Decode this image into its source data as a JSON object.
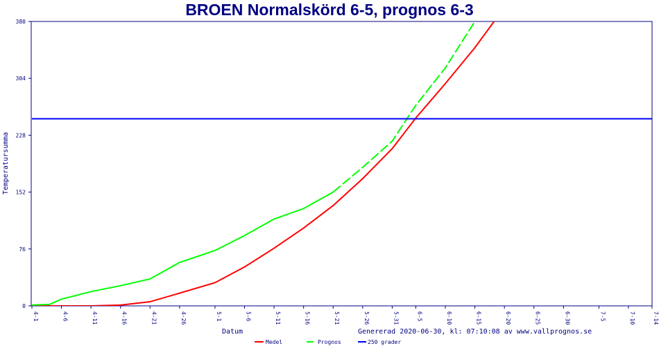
{
  "chart_data": {
    "type": "line",
    "title": "BROEN Normalskörd 6-5, prognos 6-3",
    "xlabel": "Datum",
    "ylabel": "Temperatursumma",
    "footer": "Genererad 2020-06-30, kl: 07:10:08 av www.vallprognos.se",
    "ylim": [
      0,
      380
    ],
    "yticks": [
      "0",
      "76",
      "152",
      "228",
      "304",
      "380"
    ],
    "xlim": [
      "4-1",
      "7-14"
    ],
    "xticks": [
      "4-1",
      "4-6",
      "4-11",
      "4-16",
      "4-21",
      "4-26",
      "5-1",
      "5-6",
      "5-11",
      "5-16",
      "5-21",
      "5-26",
      "5-31",
      "6-5",
      "6-10",
      "6-15",
      "6-20",
      "6-25",
      "6-30",
      "7-5",
      "7-10",
      "7-14"
    ],
    "grid": false,
    "legend_position": "bottom",
    "series": [
      {
        "name": "Medel",
        "color": "#ff0000",
        "points": [
          [
            "4-1",
            0
          ],
          [
            "4-11",
            0
          ],
          [
            "4-16",
            1
          ],
          [
            "4-21",
            5.5
          ],
          [
            "4-26",
            17
          ],
          [
            "5-1",
            31
          ],
          [
            "5-6",
            52
          ],
          [
            "5-11",
            77
          ],
          [
            "5-16",
            104
          ],
          [
            "5-21",
            134
          ],
          [
            "5-26",
            170
          ],
          [
            "5-31",
            210
          ],
          [
            "6-5",
            251
          ],
          [
            "6-10",
            297
          ],
          [
            "6-15",
            345
          ],
          [
            "6-19",
            388
          ],
          [
            "6-20",
            400
          ]
        ]
      },
      {
        "name": "Prognos",
        "color": "#00ff00",
        "points": [
          [
            "4-1",
            1
          ],
          [
            "4-4",
            2
          ],
          [
            "4-6",
            9
          ],
          [
            "4-11",
            19
          ],
          [
            "4-16",
            27
          ],
          [
            "4-21",
            36
          ],
          [
            "4-26",
            58
          ],
          [
            "5-1",
            74
          ],
          [
            "5-6",
            94
          ],
          [
            "5-11",
            116
          ],
          [
            "5-16",
            130
          ],
          [
            "5-21",
            152
          ],
          [
            "5-26",
            185
          ],
          [
            "5-31",
            220
          ],
          [
            "6-5",
            268
          ],
          [
            "6-10",
            318
          ],
          [
            "6-15",
            380
          ],
          [
            "6-17",
            400
          ]
        ],
        "dashed_from": "5-22"
      },
      {
        "name": "250 grader",
        "color": "#0000ff",
        "constant": 250
      }
    ]
  }
}
